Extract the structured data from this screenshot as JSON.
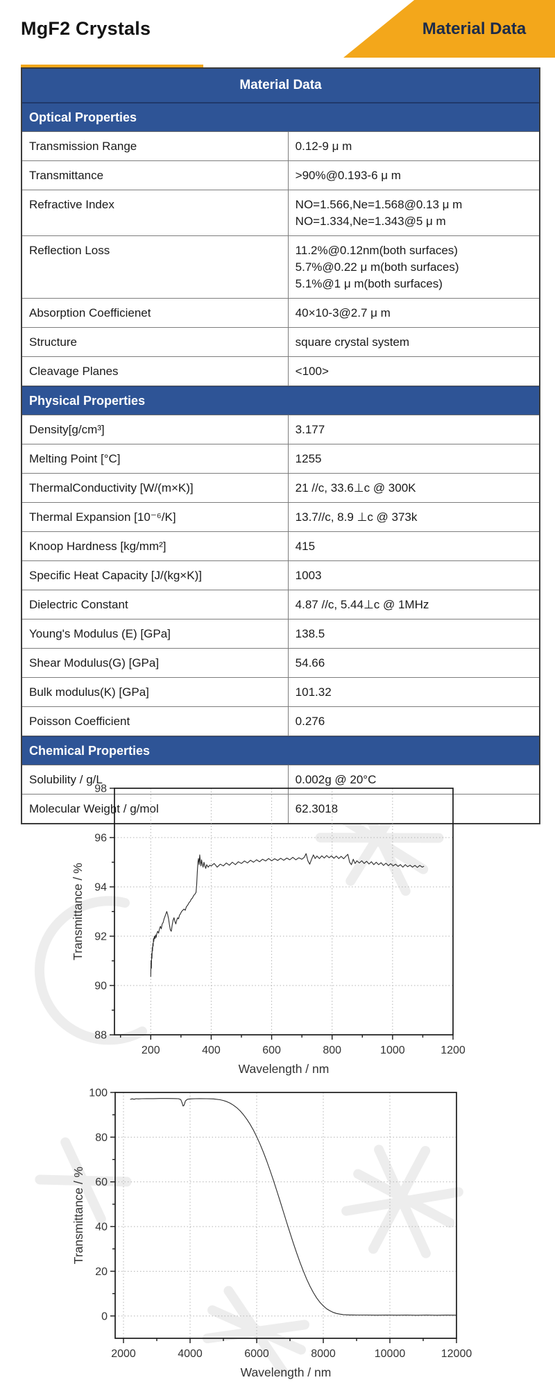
{
  "colors": {
    "header_blue": "#2E5496",
    "accent_orange": "#F3A71B",
    "ribbon_text_navy": "#1C2B4A"
  },
  "header": {
    "title": "MgF2 Crystals",
    "ribbon_label": "Material Data"
  },
  "table": {
    "title": "Material Data",
    "sections": [
      {
        "header": "Optical Properties",
        "rows": [
          {
            "label": "Transmission Range",
            "values": [
              "0.12-9 μ m"
            ]
          },
          {
            "label": "Transmittance",
            "values": [
              ">90%@0.193-6 μ m"
            ]
          },
          {
            "label": "Refractive Index",
            "values": [
              "NO=1.566,Ne=1.568@0.13 μ m",
              "NO=1.334,Ne=1.343@5 μ m"
            ]
          },
          {
            "label": "Reflection Loss",
            "values": [
              "11.2%@0.12nm(both surfaces)",
              "5.7%@0.22 μ m(both surfaces)",
              "5.1%@1 μ m(both surfaces)"
            ]
          },
          {
            "label": "Absorption Coefficienet",
            "values": [
              "40×10-3@2.7 μ m"
            ]
          },
          {
            "label": "Structure",
            "values": [
              "square crystal system"
            ]
          },
          {
            "label": "Cleavage Planes",
            "values": [
              "<100>"
            ]
          }
        ]
      },
      {
        "header": "Physical Properties",
        "rows": [
          {
            "label": "Density[g/cm³]",
            "values": [
              "3.177"
            ]
          },
          {
            "label": "Melting Point [°C]",
            "values": [
              "1255"
            ]
          },
          {
            "label": "ThermalConductivity [W/(m×K)]",
            "values": [
              "21 //c, 33.6⊥c @ 300K"
            ]
          },
          {
            "label": "Thermal Expansion [10⁻⁶/K]",
            "values": [
              "13.7//c, 8.9 ⊥c @ 373k"
            ]
          },
          {
            "label": "Knoop Hardness [kg/mm²]",
            "values": [
              "415"
            ]
          },
          {
            "label": "Specific Heat Capacity [J/(kg×K)]",
            "values": [
              "1003"
            ]
          },
          {
            "label": "Dielectric Constant",
            "values": [
              "4.87 //c, 5.44⊥c @ 1MHz"
            ]
          },
          {
            "label": "Young's Modulus (E) [GPa]",
            "values": [
              "138.5"
            ]
          },
          {
            "label": "Shear Modulus(G) [GPa]",
            "values": [
              "54.66"
            ]
          },
          {
            "label": "Bulk modulus(K) [GPa]",
            "values": [
              "101.32"
            ]
          },
          {
            "label": "Poisson Coefficient",
            "values": [
              "0.276"
            ]
          }
        ]
      },
      {
        "header": "Chemical Properties",
        "rows": [
          {
            "label": "Solubility / g/L",
            "values": [
              "0.002g @ 20°C"
            ]
          },
          {
            "label": "Molecular Weight / g/mol",
            "values": [
              "62.3018"
            ]
          }
        ]
      }
    ]
  },
  "chart_data": [
    {
      "type": "line",
      "title": "",
      "xlabel": "Wavelength / nm",
      "ylabel": "Transmittance / %",
      "xlim": [
        80,
        1200
      ],
      "ylim": [
        88,
        98
      ],
      "xticks": [
        200,
        400,
        600,
        800,
        1000,
        1200
      ],
      "yticks": [
        88,
        90,
        92,
        94,
        96,
        98
      ],
      "xticks_minor": [
        100,
        300,
        500,
        700,
        900,
        1100
      ],
      "yticks_minor": [
        89,
        91,
        93,
        95,
        97
      ],
      "grid": "dotted",
      "legend": "none",
      "points": [
        [
          200,
          90.35
        ],
        [
          201,
          91.0
        ],
        [
          202,
          90.7
        ],
        [
          203,
          91.3
        ],
        [
          204,
          91.1
        ],
        [
          205,
          91.55
        ],
        [
          206,
          91.4
        ],
        [
          207,
          91.7
        ],
        [
          208,
          91.6
        ],
        [
          209,
          91.9
        ],
        [
          210,
          91.78
        ],
        [
          212,
          92.0
        ],
        [
          214,
          91.9
        ],
        [
          216,
          92.05
        ],
        [
          218,
          91.95
        ],
        [
          220,
          92.1
        ],
        [
          223,
          92.2
        ],
        [
          226,
          92.12
        ],
        [
          229,
          92.3
        ],
        [
          232,
          92.4
        ],
        [
          235,
          92.3
        ],
        [
          238,
          92.5
        ],
        [
          241,
          92.55
        ],
        [
          244,
          92.7
        ],
        [
          247,
          92.8
        ],
        [
          250,
          92.9
        ],
        [
          253,
          93.0
        ],
        [
          256,
          92.88
        ],
        [
          259,
          92.7
        ],
        [
          262,
          92.45
        ],
        [
          265,
          92.25
        ],
        [
          268,
          92.2
        ],
        [
          271,
          92.45
        ],
        [
          274,
          92.65
        ],
        [
          277,
          92.75
        ],
        [
          280,
          92.6
        ],
        [
          283,
          92.5
        ],
        [
          286,
          92.65
        ],
        [
          289,
          92.75
        ],
        [
          292,
          92.7
        ],
        [
          295,
          92.85
        ],
        [
          298,
          92.9
        ],
        [
          302,
          93.0
        ],
        [
          306,
          93.05
        ],
        [
          310,
          93.1
        ],
        [
          314,
          93.05
        ],
        [
          318,
          93.2
        ],
        [
          322,
          93.25
        ],
        [
          326,
          93.35
        ],
        [
          330,
          93.4
        ],
        [
          334,
          93.5
        ],
        [
          338,
          93.55
        ],
        [
          342,
          93.65
        ],
        [
          346,
          93.7
        ],
        [
          350,
          93.78
        ],
        [
          352,
          94.1
        ],
        [
          354,
          94.6
        ],
        [
          356,
          95.0
        ],
        [
          358,
          95.15
        ],
        [
          360,
          94.9
        ],
        [
          362,
          95.3
        ],
        [
          364,
          95.05
        ],
        [
          366,
          94.85
        ],
        [
          368,
          95.1
        ],
        [
          370,
          94.95
        ],
        [
          373,
          94.8
        ],
        [
          376,
          95.0
        ],
        [
          379,
          94.85
        ],
        [
          382,
          94.75
        ],
        [
          385,
          94.9
        ],
        [
          390,
          94.8
        ],
        [
          395,
          94.88
        ],
        [
          400,
          94.85
        ],
        [
          410,
          94.95
        ],
        [
          420,
          94.8
        ],
        [
          430,
          94.92
        ],
        [
          440,
          94.85
        ],
        [
          450,
          94.97
        ],
        [
          460,
          94.88
        ],
        [
          470,
          95.0
        ],
        [
          480,
          94.9
        ],
        [
          490,
          95.02
        ],
        [
          500,
          94.95
        ],
        [
          510,
          95.05
        ],
        [
          520,
          94.97
        ],
        [
          530,
          95.08
        ],
        [
          540,
          95.0
        ],
        [
          550,
          95.1
        ],
        [
          560,
          95.02
        ],
        [
          570,
          95.12
        ],
        [
          580,
          95.05
        ],
        [
          590,
          95.15
        ],
        [
          600,
          95.06
        ],
        [
          610,
          95.14
        ],
        [
          620,
          95.07
        ],
        [
          630,
          95.16
        ],
        [
          640,
          95.08
        ],
        [
          650,
          95.17
        ],
        [
          660,
          95.1
        ],
        [
          670,
          95.2
        ],
        [
          680,
          95.1
        ],
        [
          690,
          95.18
        ],
        [
          700,
          95.12
        ],
        [
          708,
          95.2
        ],
        [
          714,
          95.35
        ],
        [
          720,
          95.05
        ],
        [
          726,
          94.92
        ],
        [
          732,
          95.12
        ],
        [
          738,
          95.3
        ],
        [
          744,
          95.15
        ],
        [
          750,
          95.25
        ],
        [
          758,
          95.15
        ],
        [
          766,
          95.26
        ],
        [
          774,
          95.17
        ],
        [
          782,
          95.27
        ],
        [
          790,
          95.18
        ],
        [
          798,
          95.26
        ],
        [
          806,
          95.16
        ],
        [
          814,
          95.25
        ],
        [
          822,
          95.15
        ],
        [
          830,
          95.24
        ],
        [
          838,
          95.14
        ],
        [
          846,
          95.25
        ],
        [
          852,
          95.32
        ],
        [
          858,
          95.0
        ],
        [
          864,
          94.9
        ],
        [
          870,
          95.12
        ],
        [
          876,
          94.95
        ],
        [
          882,
          95.06
        ],
        [
          890,
          94.97
        ],
        [
          898,
          95.06
        ],
        [
          906,
          94.95
        ],
        [
          914,
          95.04
        ],
        [
          922,
          94.93
        ],
        [
          930,
          95.02
        ],
        [
          938,
          94.9
        ],
        [
          946,
          95.0
        ],
        [
          954,
          94.9
        ],
        [
          962,
          94.98
        ],
        [
          970,
          94.87
        ],
        [
          978,
          94.96
        ],
        [
          986,
          94.86
        ],
        [
          994,
          94.94
        ],
        [
          1002,
          94.85
        ],
        [
          1010,
          94.92
        ],
        [
          1018,
          94.83
        ],
        [
          1026,
          94.9
        ],
        [
          1034,
          94.8
        ],
        [
          1042,
          94.9
        ],
        [
          1050,
          94.82
        ],
        [
          1058,
          94.88
        ],
        [
          1066,
          94.8
        ],
        [
          1074,
          94.87
        ],
        [
          1082,
          94.79
        ],
        [
          1090,
          94.87
        ],
        [
          1098,
          94.8
        ],
        [
          1104,
          94.84
        ]
      ]
    },
    {
      "type": "line",
      "title": "",
      "xlabel": "Wavelength / nm",
      "ylabel": "Transmittance / %",
      "xlim": [
        1750,
        12000
      ],
      "ylim": [
        -10,
        100
      ],
      "xticks": [
        2000,
        4000,
        6000,
        8000,
        10000,
        12000
      ],
      "yticks": [
        0,
        20,
        40,
        60,
        80,
        100
      ],
      "xticks_minor": [
        3000,
        5000,
        7000,
        9000,
        11000
      ],
      "yticks_minor": [
        10,
        30,
        50,
        70,
        90
      ],
      "grid": "dotted",
      "legend": "none",
      "points": [
        [
          2200,
          96.9
        ],
        [
          2260,
          97.15
        ],
        [
          2320,
          96.95
        ],
        [
          2380,
          97.2
        ],
        [
          2450,
          97.1
        ],
        [
          2550,
          97.2
        ],
        [
          2700,
          97.25
        ],
        [
          2900,
          97.25
        ],
        [
          3100,
          97.3
        ],
        [
          3300,
          97.3
        ],
        [
          3500,
          97.28
        ],
        [
          3650,
          97.2
        ],
        [
          3720,
          96.8
        ],
        [
          3760,
          95.3
        ],
        [
          3790,
          93.9
        ],
        [
          3820,
          94.3
        ],
        [
          3860,
          96.2
        ],
        [
          3920,
          96.95
        ],
        [
          4000,
          97.1
        ],
        [
          4150,
          97.2
        ],
        [
          4300,
          97.22
        ],
        [
          4500,
          97.2
        ],
        [
          4700,
          97.1
        ],
        [
          4900,
          96.75
        ],
        [
          5000,
          96.4
        ],
        [
          5100,
          95.9
        ],
        [
          5200,
          95.2
        ],
        [
          5300,
          94.3
        ],
        [
          5400,
          93.2
        ],
        [
          5500,
          91.8
        ],
        [
          5600,
          90.1
        ],
        [
          5700,
          88.1
        ],
        [
          5800,
          85.8
        ],
        [
          5900,
          83.2
        ],
        [
          6000,
          80.2
        ],
        [
          6100,
          76.9
        ],
        [
          6200,
          73.3
        ],
        [
          6300,
          69.4
        ],
        [
          6400,
          65.2
        ],
        [
          6500,
          60.8
        ],
        [
          6600,
          56.2
        ],
        [
          6700,
          51.5
        ],
        [
          6800,
          46.7
        ],
        [
          6900,
          41.9
        ],
        [
          7000,
          37.2
        ],
        [
          7100,
          32.6
        ],
        [
          7200,
          28.2
        ],
        [
          7300,
          24.0
        ],
        [
          7400,
          20.1
        ],
        [
          7500,
          16.5
        ],
        [
          7600,
          13.3
        ],
        [
          7700,
          10.5
        ],
        [
          7800,
          8.1
        ],
        [
          7900,
          6.1
        ],
        [
          8000,
          4.5
        ],
        [
          8100,
          3.2
        ],
        [
          8200,
          2.3
        ],
        [
          8300,
          1.6
        ],
        [
          8400,
          1.1
        ],
        [
          8500,
          0.8
        ],
        [
          8600,
          0.6
        ],
        [
          8700,
          0.5
        ],
        [
          8800,
          0.45
        ],
        [
          9000,
          0.4
        ],
        [
          9300,
          0.42
        ],
        [
          9600,
          0.35
        ],
        [
          9900,
          0.42
        ],
        [
          10200,
          0.35
        ],
        [
          10500,
          0.4
        ],
        [
          10800,
          0.33
        ],
        [
          11100,
          0.4
        ],
        [
          11400,
          0.33
        ],
        [
          11700,
          0.38
        ],
        [
          12000,
          0.35
        ]
      ]
    }
  ]
}
